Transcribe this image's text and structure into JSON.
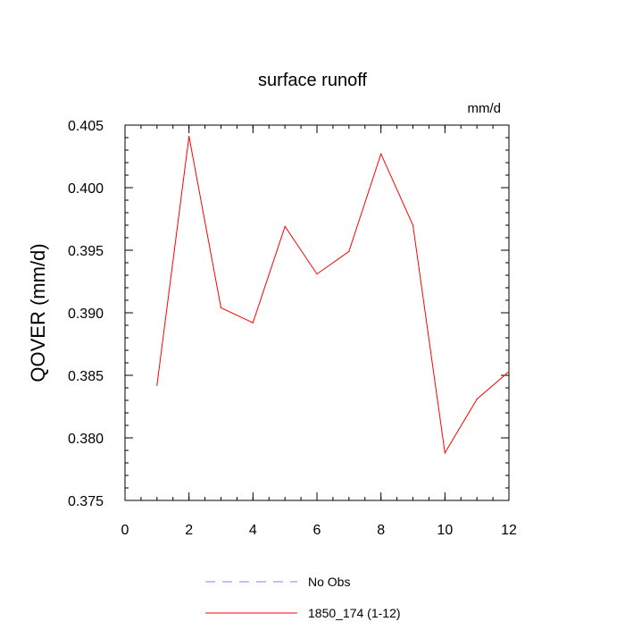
{
  "chart_data": {
    "type": "line",
    "title": "surface runoff",
    "units_label": "mm/d",
    "ylabel": "QOVER  (mm/d)",
    "xlabel": "",
    "xlim": [
      0,
      12
    ],
    "ylim": [
      0.375,
      0.405
    ],
    "x_ticks": [
      0,
      2,
      4,
      6,
      8,
      10,
      12
    ],
    "x_tick_labels": [
      "0",
      "2",
      "4",
      "6",
      "8",
      "10",
      "12"
    ],
    "y_ticks": [
      0.375,
      0.38,
      0.385,
      0.39,
      0.395,
      0.4,
      0.405
    ],
    "y_tick_labels": [
      "0.375",
      "0.380",
      "0.385",
      "0.390",
      "0.395",
      "0.400",
      "0.405"
    ],
    "grid": false,
    "legend_position": "bottom",
    "series": [
      {
        "name": "1850_174 (1-12)",
        "color": "#ff0000",
        "style": "solid",
        "x": [
          1,
          2,
          3,
          4,
          5,
          6,
          7,
          8,
          9,
          10,
          11,
          12
        ],
        "y": [
          0.3842,
          0.4041,
          0.3904,
          0.3892,
          0.3969,
          0.3931,
          0.3949,
          0.4027,
          0.397,
          0.3788,
          0.3831,
          0.3853
        ]
      }
    ],
    "legend": [
      {
        "label": "No Obs",
        "color": "#8080ff",
        "style": "dashed"
      },
      {
        "label": "1850_174 (1-12)",
        "color": "#ff0000",
        "style": "solid"
      }
    ]
  }
}
